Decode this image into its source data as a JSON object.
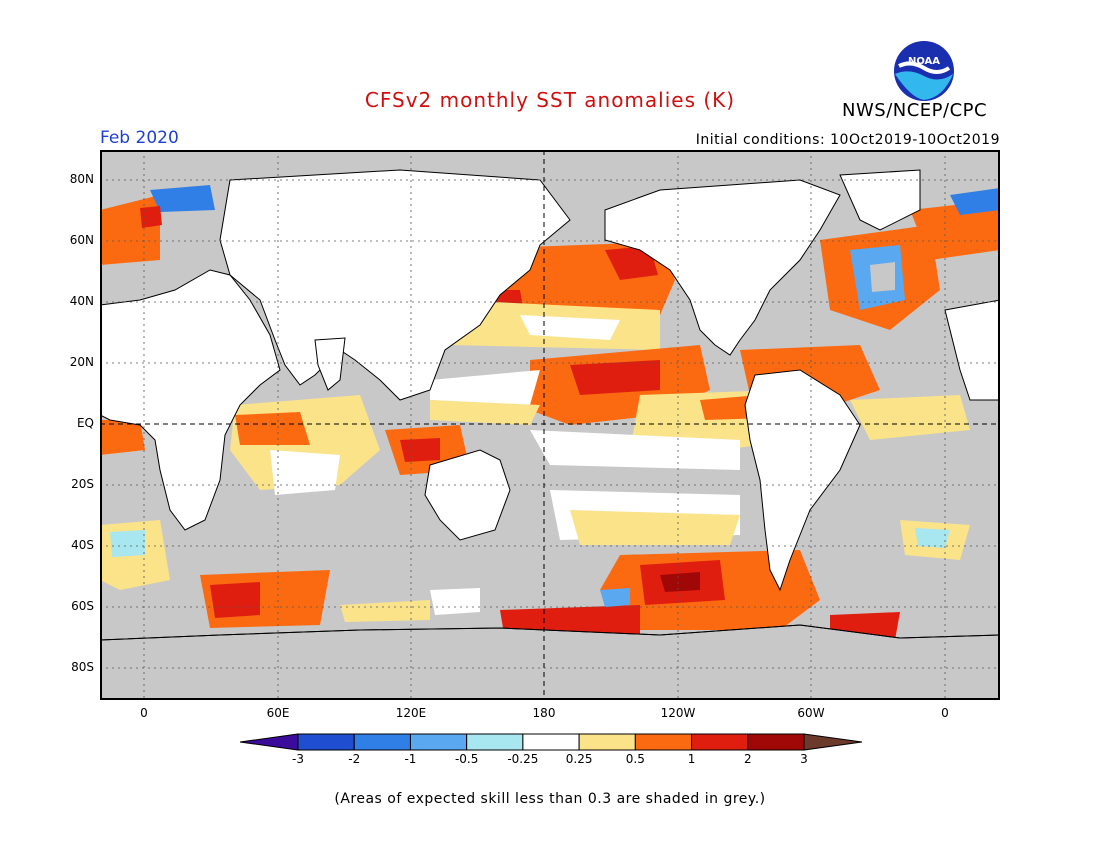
{
  "title": "CFSv2 monthly SST anomalies (K)",
  "agency": "NWS/NCEP/CPC",
  "logo_text": "NOAA",
  "month": "Feb 2020",
  "initial_conditions": "Initial conditions: 10Oct2019-10Oct2019",
  "lat_labels": [
    "80N",
    "60N",
    "40N",
    "20N",
    "EQ",
    "20S",
    "40S",
    "60S",
    "80S"
  ],
  "lon_labels": [
    "0",
    "60E",
    "120E",
    "180",
    "120W",
    "60W",
    "0"
  ],
  "colorbar": {
    "labels": [
      "-3",
      "-2",
      "-1",
      "-0.5",
      "-0.25",
      "0.25",
      "0.5",
      "1",
      "2",
      "3"
    ],
    "colors": [
      "#3b0b9c",
      "#1f4fd0",
      "#2f7fe6",
      "#5aa8f0",
      "#a8e6f0",
      "#ffffff",
      "#fbe38a",
      "#fb6a10",
      "#e01e10",
      "#a00808",
      "#6b3a2a"
    ]
  },
  "colors": {
    "ocean_grey": "#c8c8c8",
    "land": "#ffffff",
    "title_red": "#d01010",
    "month_blue": "#1f3fd0"
  },
  "note": "(Areas of expected skill less than 0.3 are shaded in grey.)"
}
